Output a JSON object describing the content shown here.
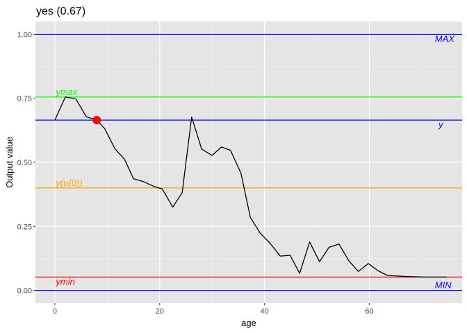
{
  "chart_data": {
    "type": "line",
    "title": "yes (0.67)",
    "xlabel": "age",
    "ylabel": "Output value",
    "xlim": [
      -3.7,
      77.7
    ],
    "ylim": [
      -0.05,
      1.05
    ],
    "xticks": [
      0,
      20,
      40,
      60
    ],
    "xtick_labels": [
      "0",
      "20",
      "40",
      "60"
    ],
    "yticks": [
      0,
      0.25,
      0.5,
      0.75,
      1.0
    ],
    "ytick_labels": [
      "0.00",
      "0.25",
      "0.50",
      "0.75",
      "1.00"
    ],
    "grid": true,
    "background": "#e5e5e5",
    "series": [
      {
        "color": "#000000",
        "x": [
          0,
          2,
          4,
          6,
          8,
          9.5,
          11.5,
          13.3,
          15,
          17,
          19,
          20.5,
          22.5,
          24.3,
          26.1,
          28,
          30,
          31.8,
          33.5,
          35.5,
          37.3,
          39.2,
          41.1,
          43,
          44.9,
          46.7,
          48.6,
          50.5,
          52.3,
          54.2,
          56.1,
          57.9,
          59.8,
          61.7,
          63.5,
          65.4,
          67.3,
          69.2,
          71,
          72.9,
          74.8
        ],
        "y": [
          0.665,
          0.755,
          0.748,
          0.678,
          0.665,
          0.632,
          0.552,
          0.512,
          0.436,
          0.424,
          0.405,
          0.396,
          0.325,
          0.382,
          0.677,
          0.552,
          0.527,
          0.56,
          0.547,
          0.458,
          0.285,
          0.223,
          0.183,
          0.134,
          0.137,
          0.066,
          0.189,
          0.112,
          0.168,
          0.181,
          0.115,
          0.074,
          0.105,
          0.076,
          0.058,
          0.056,
          0.054,
          0.053,
          0.052,
          0.052,
          0.052
        ]
      }
    ],
    "highlight_point": {
      "x": 8,
      "y": 0.665,
      "color": "#ff0000"
    },
    "reference_lines": [
      {
        "label": "MAX",
        "y": 1.0,
        "color": "#0000ff",
        "label_x": 72.5,
        "label_side": "below"
      },
      {
        "label": "ymax",
        "y": 0.755,
        "color": "#00ff00",
        "label_x": 0.2,
        "label_side": "above"
      },
      {
        "label": "y",
        "y": 0.665,
        "color": "#0000ff",
        "label_x": 73.2,
        "label_side": "below"
      },
      {
        "label": "y(u(0))",
        "y": 0.4,
        "color": "#ffa500",
        "label_x": 0.2,
        "label_side": "above"
      },
      {
        "label": "ymin",
        "y": 0.052,
        "color": "#ff0000",
        "label_x": 0.2,
        "label_side": "below"
      },
      {
        "label": "MIN",
        "y": 0.0,
        "color": "#0000ff",
        "label_x": 72.5,
        "label_side": "above"
      }
    ]
  }
}
